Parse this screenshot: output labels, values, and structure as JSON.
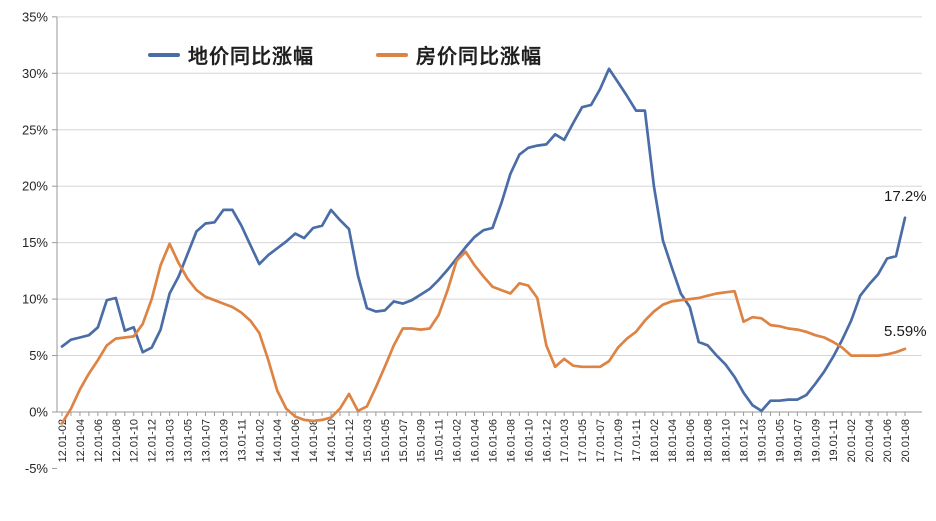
{
  "chart_data": {
    "type": "line",
    "title": "",
    "xlabel": "",
    "ylabel": "",
    "ylim": [
      -5,
      35
    ],
    "grid": true,
    "legend_position": "top",
    "yticks": [
      {
        "label": "35%",
        "value": 35
      },
      {
        "label": "30%",
        "value": 30
      },
      {
        "label": "25%",
        "value": 25
      },
      {
        "label": "20%",
        "value": 20
      },
      {
        "label": "15%",
        "value": 15
      },
      {
        "label": "10%",
        "value": 10
      },
      {
        "label": "5%",
        "value": 5
      },
      {
        "label": "0%",
        "value": 0
      },
      {
        "label": "-5%",
        "value": -5
      }
    ],
    "categories": [
      "12.01-02",
      "12.01-03",
      "12.01-04",
      "12.01-05",
      "12.01-06",
      "12.01-07",
      "12.01-08",
      "12.01-09",
      "12.01-10",
      "12.01-11",
      "12.01-12",
      "13.01-02",
      "13.01-03",
      "13.01-04",
      "13.01-05",
      "13.01-06",
      "13.01-07",
      "13.01-08",
      "13.01-09",
      "13.01-10",
      "13.01-11",
      "13.01-12",
      "14.01-02",
      "14.01-03",
      "14.01-04",
      "14.01-05",
      "14.01-06",
      "14.01-07",
      "14.01-08",
      "14.01-09",
      "14.01-10",
      "14.01-11",
      "14.01-12",
      "15.01-02",
      "15.01-03",
      "15.01-04",
      "15.01-05",
      "15.01-06",
      "15.01-07",
      "15.01-08",
      "15.01-09",
      "15.01-10",
      "15.01-11",
      "15.01-12",
      "16.01-02",
      "16.01-03",
      "16.01-04",
      "16.01-05",
      "16.01-06",
      "16.01-07",
      "16.01-08",
      "16.01-09",
      "16.01-10",
      "16.01-11",
      "16.01-12",
      "17.01-02",
      "17.01-03",
      "17.01-04",
      "17.01-05",
      "17.01-06",
      "17.01-07",
      "17.01-08",
      "17.01-09",
      "17.01-10",
      "17.01-11",
      "17.01-12",
      "18.01-02",
      "18.01-03",
      "18.01-04",
      "18.01-05",
      "18.01-06",
      "18.01-07",
      "18.01-08",
      "18.01-09",
      "18.01-10",
      "18.01-11",
      "18.01-12",
      "19.01-02",
      "19.01-03",
      "19.01-04",
      "19.01-05",
      "19.01-06",
      "19.01-07",
      "19.01-08",
      "19.01-09",
      "19.01-10",
      "19.01-11",
      "19.01-12",
      "20.01-02",
      "20.01-03",
      "20.01-04",
      "20.01-05",
      "20.01-06",
      "20.01-07",
      "20.01-08"
    ],
    "x_tick_labels": [
      "12.01-02",
      "12.01-04",
      "12.01-06",
      "12.01-08",
      "12.01-10",
      "12.01-12",
      "13.01-03",
      "13.01-05",
      "13.01-07",
      "13.01-09",
      "13.01-11",
      "14.01-02",
      "14.01-04",
      "14.01-06",
      "14.01-08",
      "14.01-10",
      "14.01-12",
      "15.01-03",
      "15.01-05",
      "15.01-07",
      "15.01-09",
      "15.01-11",
      "16.01-02",
      "16.01-04",
      "16.01-06",
      "16.01-08",
      "16.01-10",
      "16.01-12",
      "17.01-03",
      "17.01-05",
      "17.01-07",
      "17.01-09",
      "17.01-11",
      "18.01-02",
      "18.01-04",
      "18.01-06",
      "18.01-08",
      "18.01-10",
      "18.01-12",
      "19.01-03",
      "19.01-05",
      "19.01-07",
      "19.01-09",
      "19.01-11",
      "20.01-02",
      "20.01-04",
      "20.01-06",
      "20.01-08"
    ],
    "series": [
      {
        "name": "地价同比涨幅",
        "color": "#4a6da7",
        "values": [
          5.8,
          6.4,
          6.6,
          6.8,
          7.5,
          9.9,
          10.1,
          7.2,
          7.5,
          5.3,
          5.7,
          7.3,
          10.5,
          12.0,
          14.0,
          16.0,
          16.7,
          16.8,
          17.9,
          17.9,
          16.5,
          14.8,
          13.1,
          13.9,
          14.5,
          15.1,
          15.8,
          15.4,
          16.3,
          16.5,
          17.9,
          17.0,
          16.2,
          12.1,
          9.2,
          8.9,
          9.0,
          9.8,
          9.6,
          9.9,
          10.4,
          10.9,
          11.7,
          12.6,
          13.6,
          14.6,
          15.5,
          16.1,
          16.3,
          18.5,
          21.1,
          22.8,
          23.4,
          23.6,
          23.7,
          24.6,
          24.1,
          25.6,
          27.0,
          27.2,
          28.6,
          30.4,
          29.2,
          28.0,
          26.7,
          26.7,
          20.0,
          15.2,
          12.8,
          10.5,
          9.3,
          6.2,
          5.9,
          5.0,
          4.2,
          3.1,
          1.7,
          0.6,
          0.1,
          1.0,
          1.0,
          1.1,
          1.1,
          1.5,
          2.5,
          3.6,
          4.9,
          6.4,
          8.1,
          10.3,
          11.3,
          12.2,
          13.6,
          13.8,
          17.2
        ]
      },
      {
        "name": "房价同比涨幅",
        "color": "#dd8344",
        "values": [
          -1.0,
          0.3,
          2.0,
          3.4,
          4.6,
          5.9,
          6.5,
          6.6,
          6.7,
          7.8,
          10.0,
          13.0,
          14.9,
          13.2,
          11.8,
          10.8,
          10.2,
          9.9,
          9.6,
          9.3,
          8.8,
          8.1,
          7.0,
          4.6,
          1.9,
          0.3,
          -0.4,
          -0.7,
          -0.8,
          -0.7,
          -0.5,
          0.3,
          1.6,
          0.1,
          0.5,
          2.2,
          4.0,
          5.9,
          7.4,
          7.4,
          7.3,
          7.4,
          8.6,
          10.8,
          13.4,
          14.2,
          13.0,
          12.0,
          11.1,
          10.8,
          10.5,
          11.4,
          11.2,
          10.1,
          5.9,
          4.0,
          4.7,
          4.1,
          4.0,
          4.0,
          4.0,
          4.5,
          5.7,
          6.5,
          7.1,
          8.1,
          8.9,
          9.5,
          9.8,
          9.9,
          10.0,
          10.1,
          10.3,
          10.5,
          10.6,
          10.7,
          8.0,
          8.4,
          8.3,
          7.7,
          7.6,
          7.4,
          7.3,
          7.1,
          6.8,
          6.6,
          6.2,
          5.7,
          5.0,
          5.0,
          5.0,
          5.0,
          5.1,
          5.3,
          5.59
        ]
      }
    ],
    "annotations": [
      {
        "text": "17.2%",
        "series": "地价同比涨幅",
        "at": "20.01-08"
      },
      {
        "text": "5.59%",
        "series": "房价同比涨幅",
        "at": "20.01-08"
      }
    ]
  },
  "legend": {
    "items": [
      {
        "label": "地价同比涨幅",
        "color": "#4a6da7"
      },
      {
        "label": "房价同比涨幅",
        "color": "#dd8344"
      }
    ]
  },
  "colors": {
    "grid": "#d6d6d6",
    "axis": "#9a9a9a",
    "tick_text": "#262626"
  }
}
